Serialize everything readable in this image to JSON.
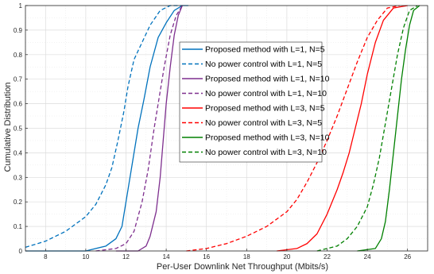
{
  "chart_data": {
    "type": "line",
    "xlabel": "Per-User Downlink Net Throughput (Mbits/s)",
    "ylabel": "Cumulative Distribution",
    "xlim": [
      7,
      27
    ],
    "ylim": [
      0,
      1
    ],
    "xticks": [
      8,
      10,
      12,
      14,
      16,
      18,
      20,
      22,
      24,
      26
    ],
    "yticks": [
      0,
      0.1,
      0.2,
      0.3,
      0.4,
      0.5,
      0.6,
      0.7,
      0.8,
      0.9,
      1
    ],
    "xtick_labels": [
      "8",
      "10",
      "12",
      "14",
      "16",
      "18",
      "20",
      "22",
      "24",
      "26"
    ],
    "ytick_labels": [
      "0",
      "0.1",
      "0.2",
      "0.3",
      "0.4",
      "0.5",
      "0.6",
      "0.7",
      "0.8",
      "0.9",
      "1"
    ],
    "grid": true,
    "legend_position": "center",
    "series": [
      {
        "name": "Proposed method with L=1, N=5",
        "color": "#0072BD",
        "dash": "solid",
        "x": [
          7.0,
          10.0,
          11.0,
          11.5,
          11.8,
          12.0,
          12.3,
          12.6,
          12.9,
          13.2,
          13.6,
          14.0,
          14.4,
          14.8,
          15.1
        ],
        "y": [
          0.0,
          0.0,
          0.02,
          0.05,
          0.1,
          0.2,
          0.35,
          0.5,
          0.62,
          0.75,
          0.87,
          0.93,
          0.98,
          1.0,
          1.0
        ]
      },
      {
        "name": "No power control with L=1, N=5",
        "color": "#0072BD",
        "dash": "dashed",
        "x": [
          7.0,
          8.0,
          9.0,
          10.0,
          10.5,
          11.0,
          11.3,
          11.6,
          11.9,
          12.1,
          12.4,
          12.8,
          13.2,
          13.7,
          14.2,
          14.8
        ],
        "y": [
          0.015,
          0.04,
          0.08,
          0.14,
          0.19,
          0.27,
          0.34,
          0.45,
          0.57,
          0.67,
          0.78,
          0.85,
          0.92,
          0.98,
          1.0,
          1.0
        ]
      },
      {
        "name": "Proposed method with  L=1, N=10",
        "color": "#7E2F8E",
        "dash": "solid",
        "x": [
          11.5,
          12.6,
          13.0,
          13.2,
          13.5,
          13.7,
          13.85,
          14.0,
          14.2,
          14.4,
          14.6,
          14.8
        ],
        "y": [
          0.0,
          0.0,
          0.02,
          0.06,
          0.16,
          0.3,
          0.45,
          0.6,
          0.75,
          0.88,
          0.96,
          1.0
        ]
      },
      {
        "name": "No power control with  L=1, N=10",
        "color": "#7E2F8E",
        "dash": "dashed",
        "x": [
          10.5,
          11.5,
          12.0,
          12.4,
          12.8,
          13.1,
          13.4,
          13.6,
          13.9,
          14.2,
          14.5,
          14.8
        ],
        "y": [
          0.0,
          0.01,
          0.03,
          0.08,
          0.2,
          0.33,
          0.5,
          0.6,
          0.75,
          0.88,
          0.96,
          1.0
        ]
      },
      {
        "name": "Proposed method with  L=3, N=5",
        "color": "#FF0000",
        "dash": "solid",
        "x": [
          19.5,
          20.5,
          21.0,
          21.5,
          22.0,
          22.5,
          22.8,
          23.1,
          23.4,
          23.7,
          24.0,
          24.4,
          24.8,
          25.3,
          26.0
        ],
        "y": [
          0.0,
          0.01,
          0.03,
          0.07,
          0.15,
          0.25,
          0.32,
          0.4,
          0.5,
          0.6,
          0.72,
          0.85,
          0.94,
          0.99,
          1.0
        ]
      },
      {
        "name": "No power control with L=3, N=5",
        "color": "#FF0000",
        "dash": "dashed",
        "x": [
          15.0,
          16.0,
          17.0,
          18.0,
          19.0,
          20.0,
          20.5,
          21.0,
          21.5,
          22.0,
          22.5,
          23.0,
          23.5,
          24.0,
          24.5,
          25.0,
          25.6
        ],
        "y": [
          0.0,
          0.01,
          0.03,
          0.06,
          0.1,
          0.16,
          0.21,
          0.28,
          0.36,
          0.45,
          0.55,
          0.66,
          0.77,
          0.87,
          0.94,
          0.99,
          1.0
        ]
      },
      {
        "name": "Proposed method with  L=3, N=10",
        "color": "#008000",
        "dash": "solid",
        "x": [
          23.5,
          24.4,
          24.7,
          24.9,
          25.1,
          25.3,
          25.5,
          25.7,
          25.9,
          26.1,
          26.3,
          26.6
        ],
        "y": [
          0.0,
          0.01,
          0.05,
          0.12,
          0.25,
          0.4,
          0.55,
          0.7,
          0.82,
          0.92,
          0.98,
          1.0
        ]
      },
      {
        "name": "No power control with L=3, N=10",
        "color": "#008000",
        "dash": "dashed",
        "x": [
          21.5,
          22.5,
          23.0,
          23.5,
          24.0,
          24.3,
          24.6,
          24.9,
          25.2,
          25.5,
          25.8,
          26.1,
          26.5
        ],
        "y": [
          0.0,
          0.02,
          0.05,
          0.1,
          0.18,
          0.27,
          0.38,
          0.52,
          0.66,
          0.8,
          0.91,
          0.98,
          1.0
        ]
      }
    ]
  }
}
